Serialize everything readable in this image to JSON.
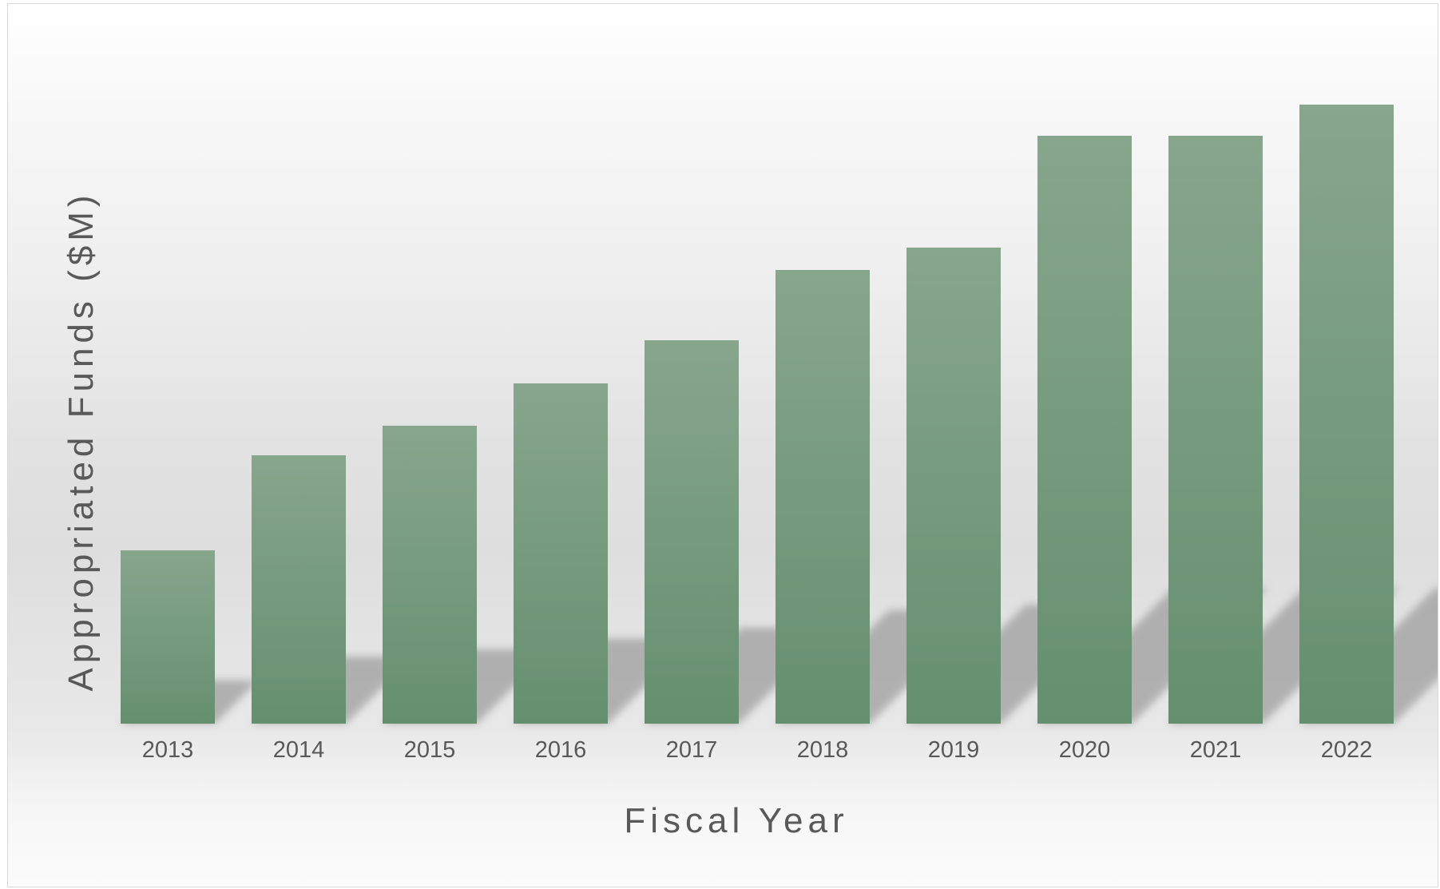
{
  "chart_data": {
    "type": "bar",
    "title": "",
    "xlabel": "Fiscal Year",
    "ylabel": "Appropriated Funds ($M)",
    "categories": [
      "2013",
      "2014",
      "2015",
      "2016",
      "2017",
      "2018",
      "2019",
      "2020",
      "2021",
      "2022"
    ],
    "values": [
      217,
      336,
      373,
      426,
      480,
      568,
      596,
      736,
      736,
      775
    ],
    "ylim": [
      0,
      775
    ],
    "grid": false,
    "legend": "none",
    "bar_color_top": "#87a68d",
    "bar_color_bottom": "#658f6f",
    "shadow_color": "#9e9e9e"
  }
}
